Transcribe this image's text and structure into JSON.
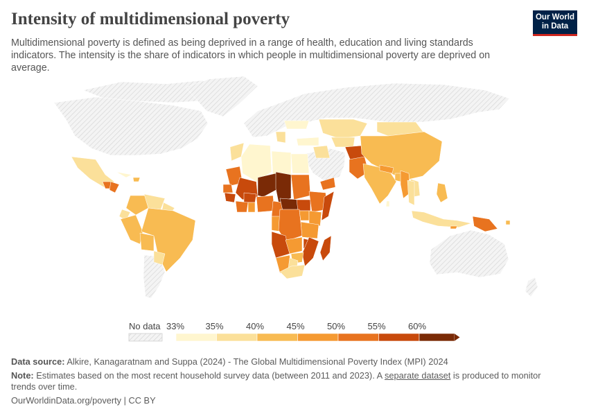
{
  "header": {
    "title": "Intensity of multidimensional poverty",
    "subtitle": "Multidimensional poverty is defined as being deprived in a range of health, education and living standards indicators. The intensity is the share of indicators in which people in multidimensional poverty are deprived on average."
  },
  "logo": {
    "line1": "Our World",
    "line2": "in Data"
  },
  "legend": {
    "no_data_label": "No data",
    "ticks": [
      "33%",
      "35%",
      "40%",
      "45%",
      "50%",
      "55%",
      "60%"
    ],
    "colors": [
      "#fff6cf",
      "#fbe09a",
      "#f8bb52",
      "#f59a32",
      "#e8731f",
      "#c84a0c",
      "#7a2a06"
    ],
    "no_data_color": "#f2f2f2"
  },
  "footer": {
    "source_label": "Data source:",
    "source_text": "Alkire, Kanagaratnam and Suppa (2024) - The Global Multidimensional Poverty Index (MPI) 2024",
    "note_label": "Note:",
    "note_text_1": "Estimates based on the most recent household survey data (between 2011 and 2023). A",
    "note_link": "separate dataset",
    "note_text_2": "is produced to monitor trends over time.",
    "credit": "OurWorldinData.org/poverty | CC BY"
  }
}
